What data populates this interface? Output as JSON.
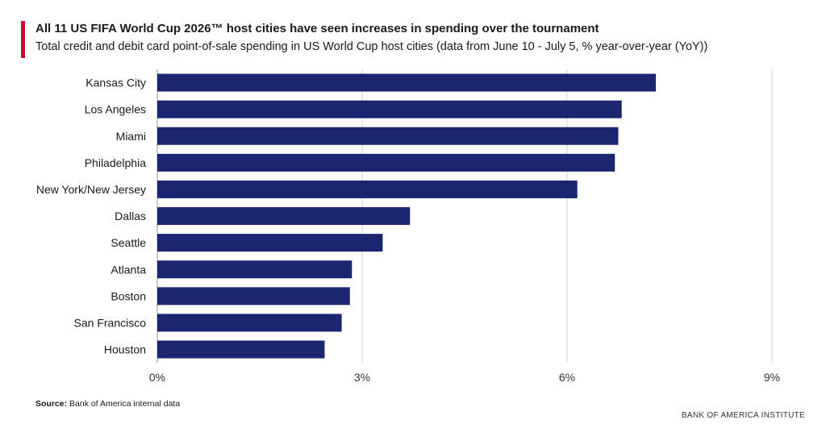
{
  "title": "All 11 US FIFA World Cup 2026™ host cities have seen increases in spending over the tournament",
  "subtitle": "Total credit and debit card point-of-sale spending in US World Cup host cities (data from June 10 - July 5, % year-over-year (YoY))",
  "source": {
    "label": "Source:",
    "text": "Bank of America internal data"
  },
  "footer": "BANK OF AMERICA INSTITUTE",
  "colors": {
    "bar": "#1b2570",
    "accent": "#c8102e",
    "grid": "#d9d9d9"
  },
  "chart_data": {
    "type": "bar",
    "orientation": "horizontal",
    "categories": [
      "Kansas City",
      "Los Angeles",
      "Miami",
      "Philadelphia",
      "New York/New Jersey",
      "Dallas",
      "Seattle",
      "Atlanta",
      "Boston",
      "San Francisco",
      "Houston"
    ],
    "values": [
      7.3,
      6.8,
      6.75,
      6.7,
      6.15,
      3.7,
      3.3,
      2.85,
      2.82,
      2.7,
      2.45
    ],
    "xlim": [
      0,
      9
    ],
    "ticks": [
      0,
      3,
      6,
      9
    ],
    "tick_labels": [
      "0%",
      "3%",
      "6%",
      "9%"
    ],
    "grid": true,
    "title": "All 11 US FIFA World Cup 2026™ host cities have seen increases in spending over the tournament",
    "xlabel": "",
    "ylabel": ""
  }
}
